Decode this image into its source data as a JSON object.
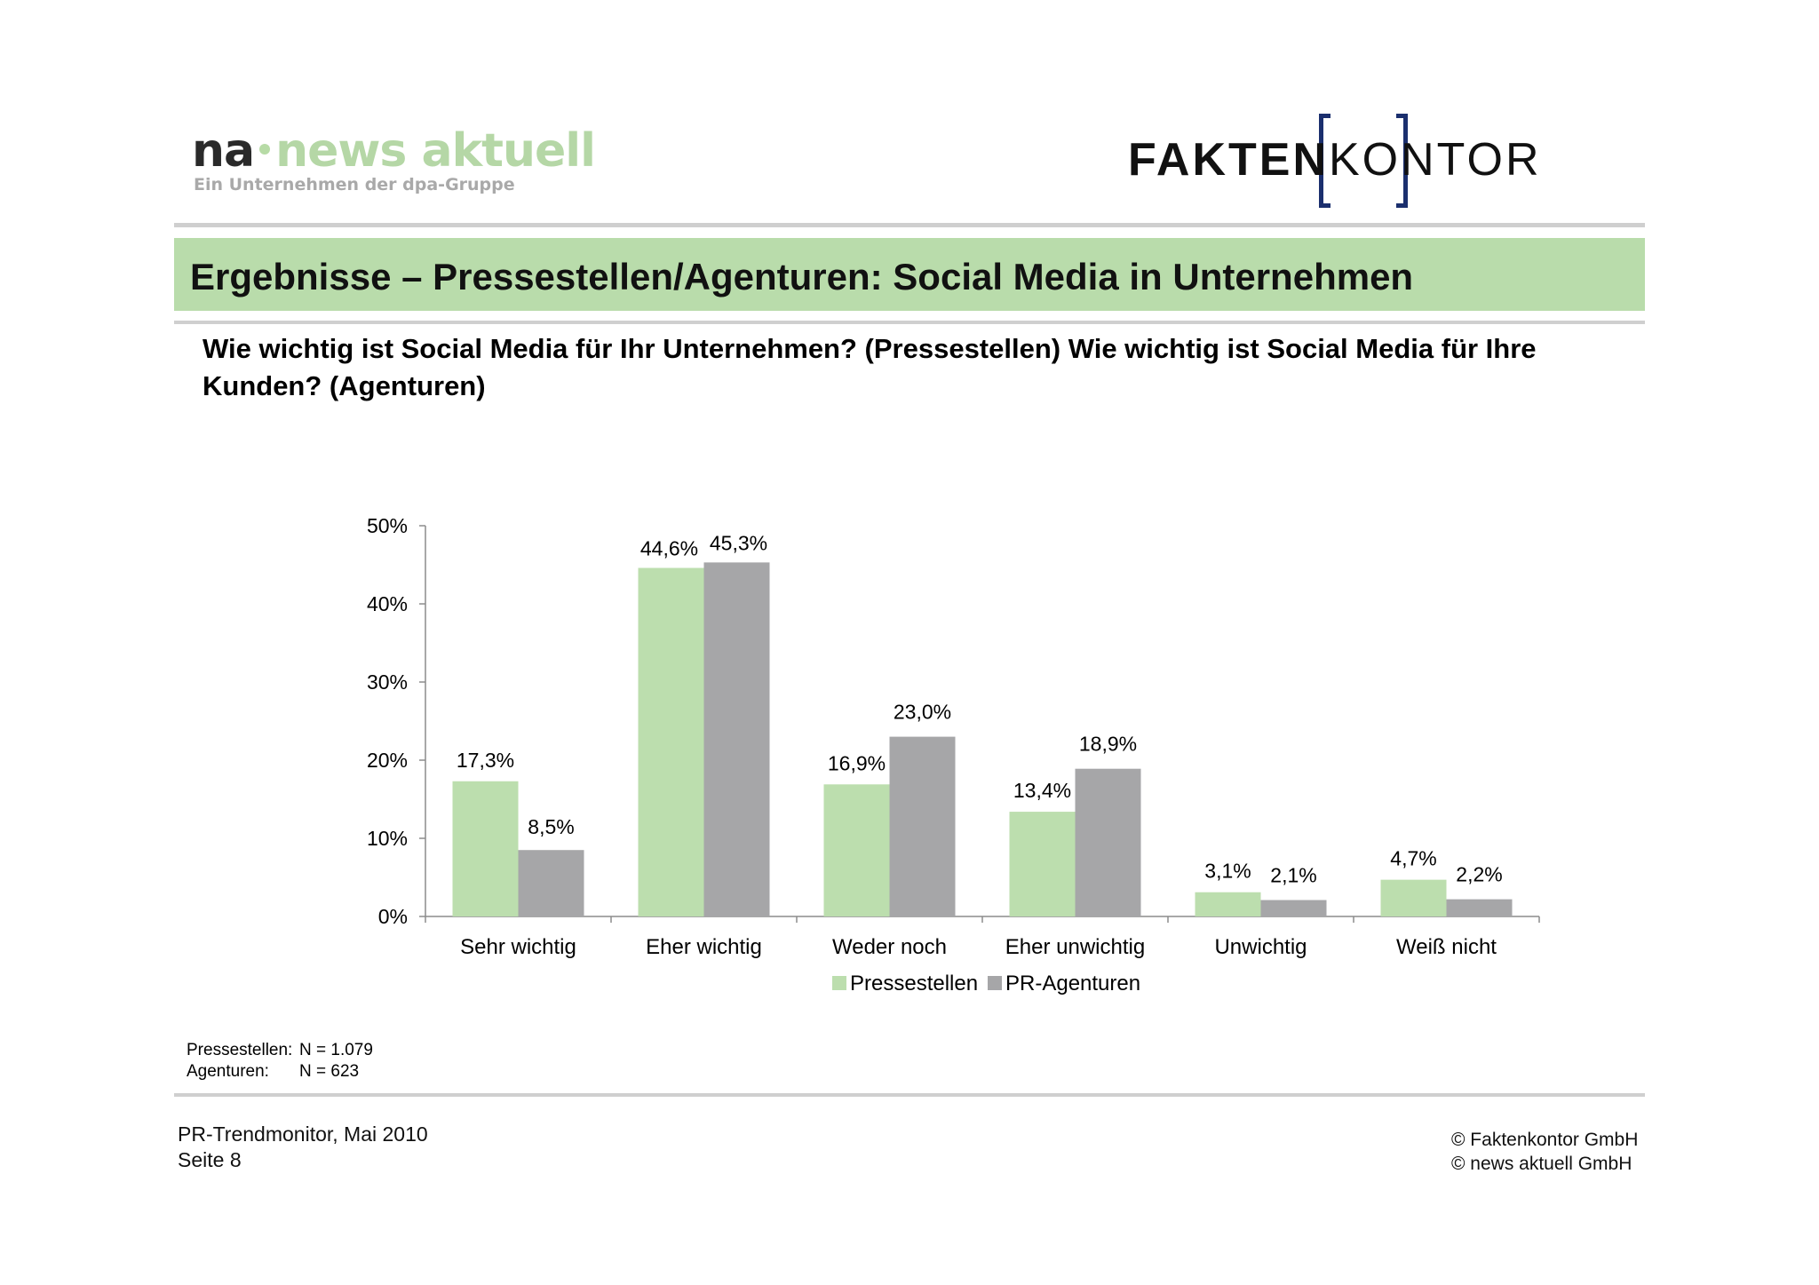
{
  "logos": {
    "news_aktuell": {
      "part1": "na",
      "part2": "news aktuell",
      "tagline": "Ein Unternehmen der dpa-Gruppe"
    },
    "faktenkontor": {
      "part1": "FAKTEN",
      "part2": "KONTOR"
    }
  },
  "title": "Ergebnisse – Pressestellen/Agenturen: Social Media in Unternehmen",
  "question": "Wie wichtig ist Social Media für Ihr Unternehmen? (Pressestellen) Wie wichtig ist Social Media für Ihre Kunden? (Agenturen)",
  "colors": {
    "pressestellen": "#bcdeae",
    "agenturen": "#a6a6a8",
    "title_bar": "#b9dcab",
    "logo_blue": "#1b2f6e"
  },
  "chart_data": {
    "type": "bar",
    "categories": [
      "Sehr wichtig",
      "Eher wichtig",
      "Weder noch",
      "Eher unwichtig",
      "Unwichtig",
      "Weiß  nicht"
    ],
    "series": [
      {
        "name": "Pressestellen",
        "values": [
          17.3,
          44.6,
          16.9,
          13.4,
          3.1,
          4.7
        ],
        "labels": [
          "17,3%",
          "44,6%",
          "16,9%",
          "13,4%",
          "3,1%",
          "4,7%"
        ]
      },
      {
        "name": "PR-Agenturen",
        "values": [
          8.5,
          45.3,
          23.0,
          18.9,
          2.1,
          2.2
        ],
        "labels": [
          "8,5%",
          "45,3%",
          "23,0%",
          "18,9%",
          "2,1%",
          "2,2%"
        ]
      }
    ],
    "ylim": [
      0,
      50
    ],
    "yticks": [
      "0%",
      "10%",
      "20%",
      "30%",
      "40%",
      "50%"
    ],
    "legend_position": "bottom",
    "grid": false
  },
  "notes": {
    "pressestellen_label": "Pressestellen:",
    "pressestellen_n": "N = 1.079",
    "agenturen_label": "Agenturen:",
    "agenturen_n": "N = 623"
  },
  "footer": {
    "source": "PR-Trendmonitor, Mai 2010",
    "page": "Seite 8",
    "copyright_1": "© Faktenkontor GmbH",
    "copyright_2": "© news aktuell GmbH"
  }
}
